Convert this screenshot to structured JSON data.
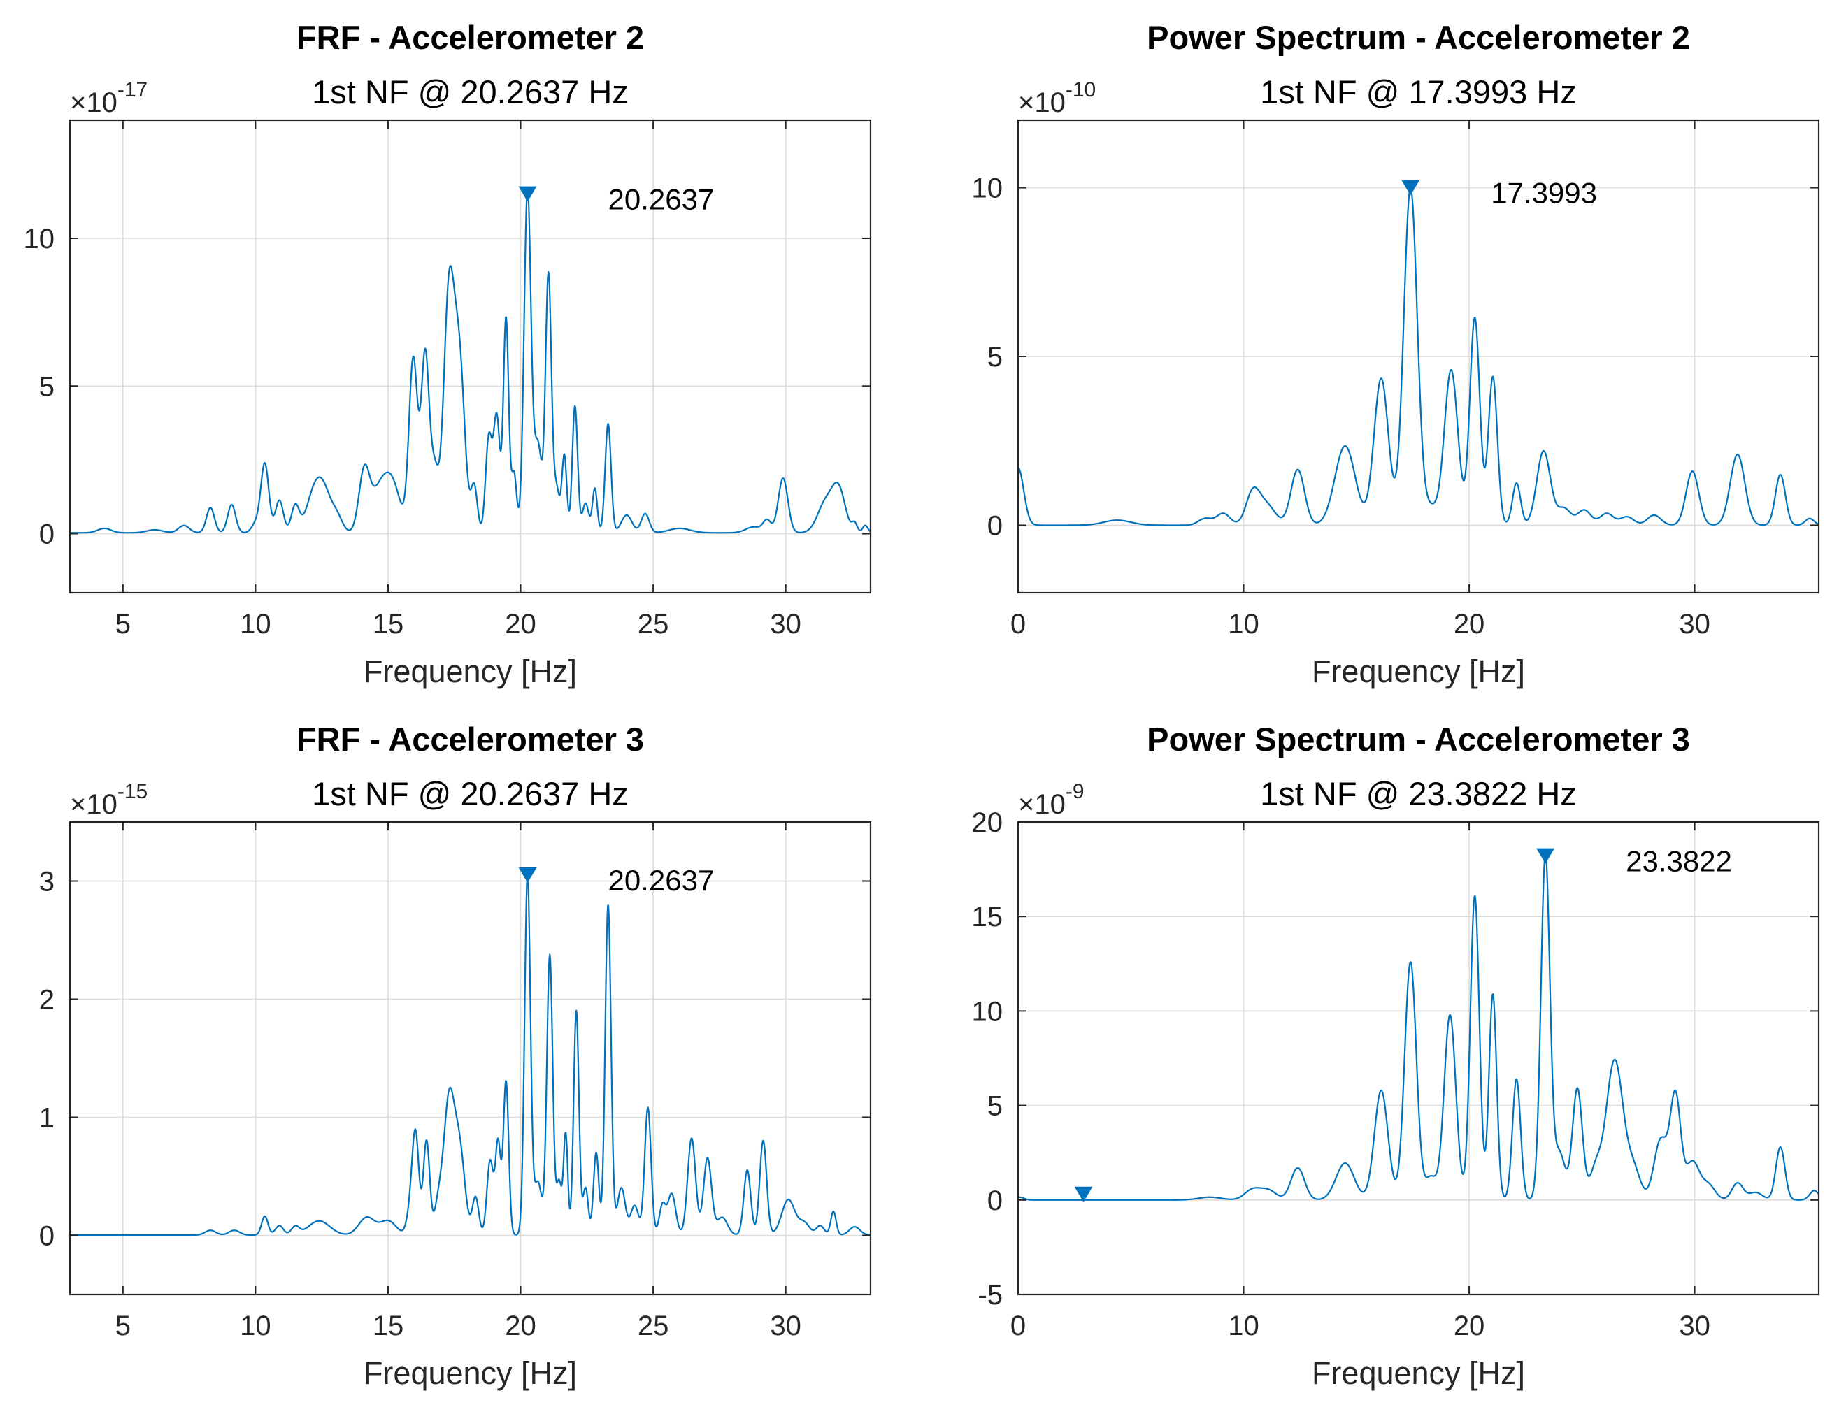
{
  "chart_data": [
    {
      "type": "line",
      "title": "FRF - Accelerometer 2",
      "subtitle": "1st NF @ 20.2637 Hz",
      "xlabel": "Frequency [Hz]",
      "ylabel": "",
      "exponent_base": "×10",
      "exponent_power": "-17",
      "xlim": [
        3,
        33.2
      ],
      "ylim": [
        -2,
        14
      ],
      "xticks": [
        5,
        10,
        15,
        20,
        25,
        30
      ],
      "yticks": [
        0,
        5,
        10
      ],
      "grid": true,
      "series": [
        {
          "name": "FRF",
          "baseline": 0.03,
          "peaks": [
            [
              4.3,
              0.15,
              0.25
            ],
            [
              6.2,
              0.1,
              0.3
            ],
            [
              7.3,
              0.25,
              0.2
            ],
            [
              8.3,
              0.85,
              0.15
            ],
            [
              9.1,
              0.95,
              0.15
            ],
            [
              10.0,
              0.3,
              0.15
            ],
            [
              10.35,
              2.35,
              0.15
            ],
            [
              10.9,
              1.1,
              0.15
            ],
            [
              11.5,
              0.9,
              0.15
            ],
            [
              12.2,
              1.15,
              0.3
            ],
            [
              12.6,
              1.2,
              0.3
            ],
            [
              13.1,
              0.4,
              0.2
            ],
            [
              14.1,
              1.95,
              0.2
            ],
            [
              14.7,
              1.45,
              0.35
            ],
            [
              15.2,
              1.3,
              0.3
            ],
            [
              15.95,
              5.85,
              0.16
            ],
            [
              16.4,
              6.0,
              0.15
            ],
            [
              16.75,
              2.0,
              0.15
            ],
            [
              17.3,
              8.1,
              0.2
            ],
            [
              17.7,
              5.5,
              0.2
            ],
            [
              18.25,
              1.55,
              0.12
            ],
            [
              18.8,
              3.2,
              0.12
            ],
            [
              19.1,
              3.9,
              0.12
            ],
            [
              19.45,
              7.25,
              0.1
            ],
            [
              19.75,
              2.0,
              0.1
            ],
            [
              20.26,
              11.6,
              0.13
            ],
            [
              20.65,
              3.0,
              0.15
            ],
            [
              21.05,
              8.7,
              0.11
            ],
            [
              21.35,
              1.5,
              0.12
            ],
            [
              21.65,
              2.6,
              0.09
            ],
            [
              22.05,
              4.3,
              0.1
            ],
            [
              22.45,
              1.0,
              0.12
            ],
            [
              22.8,
              1.5,
              0.09
            ],
            [
              23.3,
              3.7,
              0.11
            ],
            [
              24.0,
              0.6,
              0.2
            ],
            [
              24.7,
              0.65,
              0.15
            ],
            [
              26.0,
              0.15,
              0.4
            ],
            [
              28.8,
              0.2,
              0.3
            ],
            [
              29.3,
              0.4,
              0.15
            ],
            [
              29.9,
              1.85,
              0.18
            ],
            [
              31.5,
              1.0,
              0.3
            ],
            [
              32.0,
              1.4,
              0.25
            ],
            [
              32.6,
              0.3,
              0.1
            ],
            [
              33.0,
              0.25,
              0.1
            ]
          ],
          "peak_marker": {
            "x": 20.2637,
            "y": 11.5
          }
        }
      ],
      "annotation": "20.2637"
    },
    {
      "type": "line",
      "title": "Power Spectrum - Accelerometer 2",
      "subtitle": "1st NF @ 17.3993 Hz",
      "xlabel": "Frequency [Hz]",
      "ylabel": "",
      "exponent_base": "×10",
      "exponent_power": "-10",
      "xlim": [
        0,
        35.5
      ],
      "ylim": [
        -2,
        12
      ],
      "xticks": [
        0,
        10,
        20,
        30
      ],
      "yticks": [
        0,
        5,
        10
      ],
      "grid": true,
      "series": [
        {
          "name": "Power Spectrum",
          "baseline": 0.0,
          "peaks": [
            [
              0.0,
              1.7,
              0.25
            ],
            [
              4.4,
              0.15,
              0.6
            ],
            [
              8.3,
              0.2,
              0.3
            ],
            [
              9.1,
              0.35,
              0.3
            ],
            [
              10.4,
              0.9,
              0.3
            ],
            [
              11.0,
              0.6,
              0.4
            ],
            [
              12.4,
              1.65,
              0.3
            ],
            [
              14.5,
              2.35,
              0.45
            ],
            [
              16.1,
              4.35,
              0.32
            ],
            [
              17.4,
              10.0,
              0.3
            ],
            [
              18.3,
              0.5,
              0.3
            ],
            [
              19.2,
              4.6,
              0.3
            ],
            [
              20.25,
              6.15,
              0.22
            ],
            [
              21.05,
              4.4,
              0.2
            ],
            [
              22.1,
              1.25,
              0.18
            ],
            [
              23.3,
              2.2,
              0.3
            ],
            [
              24.2,
              0.5,
              0.3
            ],
            [
              25.1,
              0.45,
              0.3
            ],
            [
              26.1,
              0.35,
              0.3
            ],
            [
              27.0,
              0.25,
              0.3
            ],
            [
              28.2,
              0.3,
              0.3
            ],
            [
              29.9,
              1.6,
              0.28
            ],
            [
              31.9,
              2.1,
              0.32
            ],
            [
              33.8,
              1.5,
              0.22
            ],
            [
              35.1,
              0.2,
              0.2
            ]
          ],
          "peak_marker": {
            "x": 17.3993,
            "y": 10.0
          }
        }
      ],
      "annotation": "17.3993"
    },
    {
      "type": "line",
      "title": "FRF - Accelerometer 3",
      "subtitle": "1st NF @ 20.2637 Hz",
      "xlabel": "Frequency [Hz]",
      "ylabel": "",
      "exponent_base": "×10",
      "exponent_power": "-15",
      "xlim": [
        3,
        33.2
      ],
      "ylim": [
        -0.5,
        3.5
      ],
      "xticks": [
        5,
        10,
        15,
        20,
        25,
        30
      ],
      "yticks": [
        0,
        1,
        2,
        3
      ],
      "grid": true,
      "series": [
        {
          "name": "FRF",
          "baseline": 0.003,
          "peaks": [
            [
              8.3,
              0.04,
              0.2
            ],
            [
              9.2,
              0.04,
              0.2
            ],
            [
              10.35,
              0.16,
              0.12
            ],
            [
              10.9,
              0.08,
              0.15
            ],
            [
              11.5,
              0.07,
              0.15
            ],
            [
              12.4,
              0.12,
              0.4
            ],
            [
              14.2,
              0.15,
              0.3
            ],
            [
              15.0,
              0.12,
              0.3
            ],
            [
              15.9,
              0.3,
              0.15
            ],
            [
              16.05,
              0.7,
              0.12
            ],
            [
              16.45,
              0.8,
              0.12
            ],
            [
              16.9,
              0.25,
              0.15
            ],
            [
              17.3,
              1.13,
              0.2
            ],
            [
              17.7,
              0.7,
              0.2
            ],
            [
              18.3,
              0.32,
              0.12
            ],
            [
              18.85,
              0.63,
              0.12
            ],
            [
              19.15,
              0.78,
              0.1
            ],
            [
              19.45,
              1.3,
              0.1
            ],
            [
              20.26,
              3.05,
              0.11
            ],
            [
              20.65,
              0.45,
              0.15
            ],
            [
              21.1,
              2.37,
              0.11
            ],
            [
              21.45,
              0.45,
              0.1
            ],
            [
              21.7,
              0.85,
              0.08
            ],
            [
              22.1,
              1.9,
              0.1
            ],
            [
              22.45,
              0.4,
              0.1
            ],
            [
              22.85,
              0.7,
              0.1
            ],
            [
              23.3,
              2.8,
              0.11
            ],
            [
              23.8,
              0.4,
              0.15
            ],
            [
              24.3,
              0.25,
              0.15
            ],
            [
              24.8,
              1.08,
              0.12
            ],
            [
              25.35,
              0.25,
              0.12
            ],
            [
              25.7,
              0.35,
              0.15
            ],
            [
              26.45,
              0.82,
              0.15
            ],
            [
              27.05,
              0.65,
              0.15
            ],
            [
              27.6,
              0.15,
              0.2
            ],
            [
              28.55,
              0.55,
              0.13
            ],
            [
              29.15,
              0.8,
              0.13
            ],
            [
              30.1,
              0.3,
              0.25
            ],
            [
              30.7,
              0.1,
              0.2
            ],
            [
              31.3,
              0.08,
              0.15
            ],
            [
              31.8,
              0.2,
              0.1
            ],
            [
              32.6,
              0.07,
              0.2
            ]
          ],
          "peak_marker": {
            "x": 20.2637,
            "y": 3.05
          }
        }
      ],
      "annotation": "20.2637"
    },
    {
      "type": "line",
      "title": "Power Spectrum - Accelerometer 3",
      "subtitle": "1st NF @ 23.3822 Hz",
      "xlabel": "Frequency [Hz]",
      "ylabel": "",
      "exponent_base": "×10",
      "exponent_power": "-9",
      "xlim": [
        0,
        35.5
      ],
      "ylim": [
        -5,
        20
      ],
      "xticks": [
        0,
        10,
        20,
        30
      ],
      "yticks": [
        -5,
        0,
        5,
        10,
        15,
        20
      ],
      "grid": true,
      "series": [
        {
          "name": "Power Spectrum",
          "baseline": 0.0,
          "peaks": [
            [
              0.05,
              0.15,
              0.2
            ],
            [
              8.5,
              0.15,
              0.5
            ],
            [
              10.4,
              0.55,
              0.35
            ],
            [
              11.1,
              0.5,
              0.35
            ],
            [
              12.4,
              1.7,
              0.3
            ],
            [
              14.5,
              1.95,
              0.4
            ],
            [
              16.1,
              5.8,
              0.3
            ],
            [
              17.4,
              12.6,
              0.26
            ],
            [
              18.3,
              1.2,
              0.25
            ],
            [
              19.15,
              9.8,
              0.26
            ],
            [
              20.25,
              16.1,
              0.2
            ],
            [
              21.05,
              10.9,
              0.17
            ],
            [
              22.1,
              6.4,
              0.18
            ],
            [
              23.38,
              18.2,
              0.2
            ],
            [
              24.0,
              2.5,
              0.25
            ],
            [
              24.8,
              5.9,
              0.22
            ],
            [
              25.6,
              1.5,
              0.25
            ],
            [
              26.45,
              7.4,
              0.38
            ],
            [
              27.3,
              1.5,
              0.3
            ],
            [
              28.5,
              3.2,
              0.3
            ],
            [
              29.15,
              5.4,
              0.23
            ],
            [
              29.9,
              2.0,
              0.3
            ],
            [
              30.6,
              0.8,
              0.3
            ],
            [
              31.9,
              0.9,
              0.25
            ],
            [
              32.7,
              0.4,
              0.3
            ],
            [
              33.8,
              2.8,
              0.2
            ],
            [
              35.3,
              0.5,
              0.2
            ]
          ],
          "peak_marker": {
            "x": 23.3822,
            "y": 18.2
          },
          "extra_marker": {
            "x": 2.9,
            "y": 0.3
          }
        }
      ],
      "annotation": "23.3822"
    }
  ]
}
